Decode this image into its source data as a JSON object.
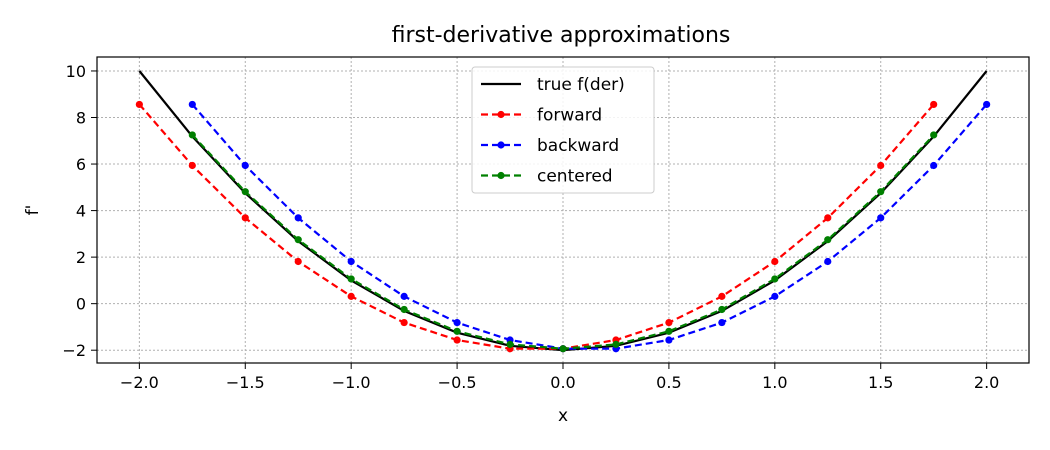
{
  "chart_data": {
    "type": "line",
    "title": "first-derivative approximations",
    "xlabel": "x",
    "ylabel": "f'",
    "xlim": [
      -2.2,
      2.2
    ],
    "ylim": [
      -2.55,
      10.6
    ],
    "xticks": [
      -2.0,
      -1.5,
      -1.0,
      -0.5,
      0.0,
      0.5,
      1.0,
      1.5,
      2.0
    ],
    "xtick_labels": [
      "−2.0",
      "−1.5",
      "−1.0",
      "−0.5",
      "0.0",
      "0.5",
      "1.0",
      "1.5",
      "2.0"
    ],
    "yticks": [
      -2,
      0,
      2,
      4,
      6,
      8,
      10
    ],
    "ytick_labels": [
      "−2",
      "0",
      "2",
      "4",
      "6",
      "8",
      "10"
    ],
    "grid": true,
    "legend_position": "top-center",
    "series": [
      {
        "name": "true f(der)",
        "color": "#000000",
        "style": "solid",
        "markers": false,
        "x": [
          -2.0,
          -1.75,
          -1.5,
          -1.25,
          -1.0,
          -0.75,
          -0.5,
          -0.25,
          0.0,
          0.25,
          0.5,
          0.75,
          1.0,
          1.25,
          1.5,
          1.75,
          2.0
        ],
        "y": [
          10.0,
          7.1875,
          4.75,
          2.6875,
          1.0,
          -0.3125,
          -1.25,
          -1.8125,
          -2.0,
          -1.8125,
          -1.25,
          -0.3125,
          1.0,
          2.6875,
          4.75,
          7.1875,
          10.0
        ]
      },
      {
        "name": "forward",
        "color": "#ff0000",
        "style": "dashed",
        "markers": true,
        "x": [
          -2.0,
          -1.75,
          -1.5,
          -1.25,
          -1.0,
          -0.75,
          -0.5,
          -0.25,
          0.0,
          0.25,
          0.5,
          0.75,
          1.0,
          1.25,
          1.5,
          1.75
        ],
        "y": [
          8.5625,
          5.9375,
          3.6875,
          1.8125,
          0.3125,
          -0.8125,
          -1.5625,
          -1.9375,
          -1.9375,
          -1.5625,
          -0.8125,
          0.3125,
          1.8125,
          3.6875,
          5.9375,
          8.5625
        ]
      },
      {
        "name": "backward",
        "color": "#0000ff",
        "style": "dashed",
        "markers": true,
        "x": [
          -1.75,
          -1.5,
          -1.25,
          -1.0,
          -0.75,
          -0.5,
          -0.25,
          0.0,
          0.25,
          0.5,
          0.75,
          1.0,
          1.25,
          1.5,
          1.75,
          2.0
        ],
        "y": [
          8.5625,
          5.9375,
          3.6875,
          1.8125,
          0.3125,
          -0.8125,
          -1.5625,
          -1.9375,
          -1.9375,
          -1.5625,
          -0.8125,
          0.3125,
          1.8125,
          3.6875,
          5.9375,
          8.5625
        ]
      },
      {
        "name": "centered",
        "color": "#008000",
        "style": "dashed",
        "markers": true,
        "x": [
          -1.75,
          -1.5,
          -1.25,
          -1.0,
          -0.75,
          -0.5,
          -0.25,
          0.0,
          0.25,
          0.5,
          0.75,
          1.0,
          1.25,
          1.5,
          1.75
        ],
        "y": [
          7.25,
          4.8125,
          2.75,
          1.0625,
          -0.25,
          -1.1875,
          -1.75,
          -1.9375,
          -1.75,
          -1.1875,
          -0.25,
          1.0625,
          2.75,
          4.8125,
          7.25
        ]
      }
    ]
  }
}
